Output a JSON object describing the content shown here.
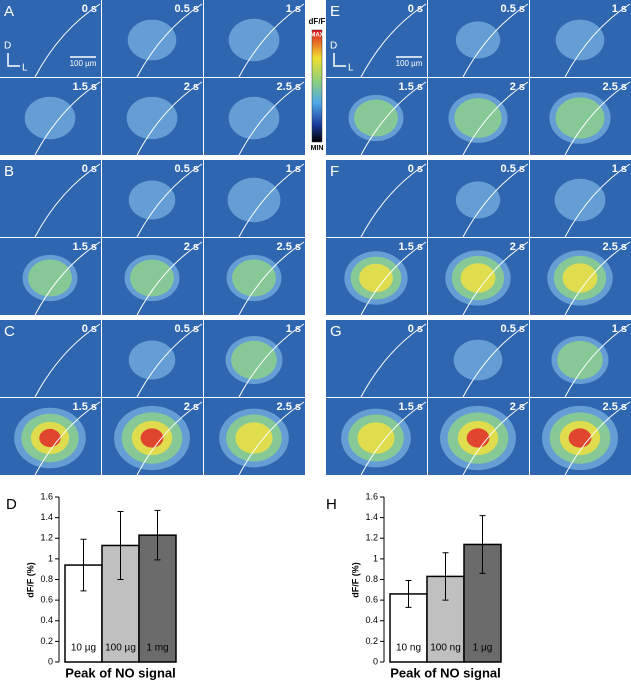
{
  "panels": [
    {
      "label": "A",
      "times": [
        "0 s",
        "0.5 s",
        "1 s",
        "1.5 s",
        "2 s",
        "2.5 s"
      ],
      "scale": {
        "dorsal": "D",
        "lateral": "L",
        "bar": "100 µm"
      }
    },
    {
      "label": "B",
      "times": [
        "0 s",
        "0.5 s",
        "1 s",
        "1.5 s",
        "2 s",
        "2.5 s"
      ]
    },
    {
      "label": "C",
      "times": [
        "0 s",
        "0.5 s",
        "1 s",
        "1.5 s",
        "2 s",
        "2.5 s"
      ]
    },
    {
      "label": "E",
      "times": [
        "0 s",
        "0.5 s",
        "1 s",
        "1.5 s",
        "2 s",
        "2.5 s"
      ],
      "scale": {
        "dorsal": "D",
        "lateral": "L",
        "bar": "100 µm"
      }
    },
    {
      "label": "F",
      "times": [
        "0 s",
        "0.5 s",
        "1 s",
        "1.5 s",
        "2 s",
        "2.5 s"
      ]
    },
    {
      "label": "G",
      "times": [
        "0 s",
        "0.5 s",
        "1 s",
        "1.5 s",
        "2 s",
        "2.5 s"
      ]
    }
  ],
  "colorbar": {
    "title": "dF/F",
    "max": "MAX",
    "min": "MIN"
  },
  "chart_data": [
    {
      "type": "bar",
      "panel_label": "D",
      "ylabel": "dF/F (%)",
      "xlabel": "Peak of NO signal",
      "categories": [
        "10 µg",
        "100 µg",
        "1 mg"
      ],
      "values": [
        0.94,
        1.13,
        1.23
      ],
      "errors": [
        0.25,
        0.33,
        0.24
      ],
      "colors": [
        "#ffffff",
        "#c0c0c0",
        "#6b6b6b"
      ],
      "ylim": [
        0,
        1.6
      ],
      "yticks": [
        0,
        0.2,
        0.4,
        0.6,
        0.8,
        1,
        1.2,
        1.4,
        1.6
      ]
    },
    {
      "type": "bar",
      "panel_label": "H",
      "ylabel": "dF/F (%)",
      "xlabel": "Peak of NO signal",
      "categories": [
        "10 ng",
        "100 ng",
        "1 µg"
      ],
      "values": [
        0.66,
        0.83,
        1.14
      ],
      "errors": [
        0.13,
        0.23,
        0.28
      ],
      "colors": [
        "#ffffff",
        "#c0c0c0",
        "#6b6b6b"
      ],
      "ylim": [
        0,
        1.6
      ],
      "yticks": [
        0,
        0.2,
        0.4,
        0.6,
        0.8,
        1,
        1.2,
        1.4,
        1.6
      ]
    }
  ]
}
